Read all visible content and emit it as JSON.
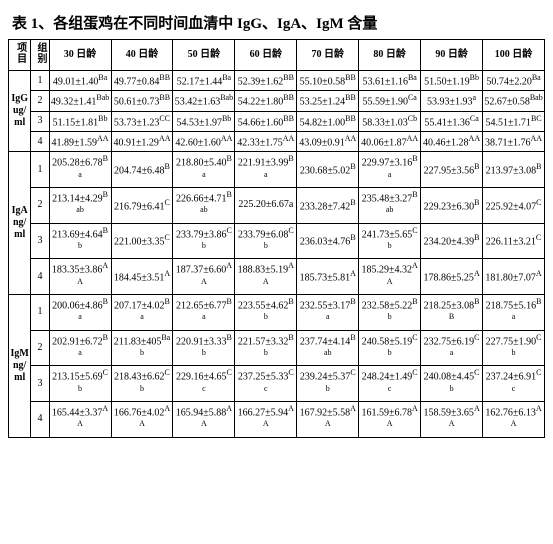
{
  "title": "表 1、各组蛋鸡在不同时间血清中 IgG、IgA、IgM 含量",
  "header": {
    "item": "项目",
    "group": "组别",
    "cols": [
      "30 日龄",
      "40 日龄",
      "50 日龄",
      "60 日龄",
      "70 日龄",
      "80 日龄",
      "90 日龄",
      "100 日龄"
    ]
  },
  "blocks": [
    {
      "label": "IgG ug/ml",
      "rows": [
        {
          "g": "1",
          "c": [
            "49.01±1.40^Ba",
            "49.77±0.84^BB",
            "52.17±1.44^Ba",
            "52.39±1.62^BB",
            "55.10±0.58^BB",
            "53.61±1.16^Ba",
            "51.50±1.19^Bb",
            "50.74±2.20^Ba"
          ]
        },
        {
          "g": "2",
          "c": [
            "49.32±1.41^Bab",
            "50.61±0.73^BB",
            "53.42±1.63^Bab",
            "54.22±1.80^BB",
            "53.25±1.24^BB",
            "55.59±1.90^Ca",
            "53.93±1.93^a",
            "52.67±0.58^Bab"
          ]
        },
        {
          "g": "3",
          "c": [
            "51.15±1.81^Bb",
            "53.73±1.23^CC",
            "54.53±1.97^Bb",
            "54.66±1.60^BB",
            "54.82±1.00^BB",
            "58.33±1.03^Cb",
            "55.41±1.36^Ca",
            "54.51±1.71^BC"
          ]
        },
        {
          "g": "4",
          "c": [
            "41.89±1.59^AA",
            "40.91±1.29^AA",
            "42.60±1.60^AA",
            "42.33±1.75^AA",
            "43.09±0.91^AA",
            "40.06±1.87^AA",
            "40.46±1.28^AA",
            "38.71±1.76^AA"
          ]
        }
      ]
    },
    {
      "label": "IgA ng/ml",
      "rows": [
        {
          "g": "1",
          "c": [
            "205.28±6.78^Ba",
            "204.74±6.48^B",
            "218.80±5.40^Ba",
            "221.91±3.99^Ba",
            "230.68±5.02^B",
            "229.97±3.16^Ba",
            "227.95±3.56^B",
            "213.97±3.08^B"
          ]
        },
        {
          "g": "2",
          "c": [
            "213.14±4.29^Bab",
            "216.79±6.41^C",
            "226.66±4.71^Bab",
            "225.20±6.67a",
            "233.28±7.42^B",
            "235.48±3.27^Bab",
            "229.23±6.30^B",
            "225.92±4.07^C"
          ]
        },
        {
          "g": "3",
          "c": [
            "213.69±4.64^Bb",
            "221.00±3.35^C",
            "233.79±3.86^Cb",
            "233.79±6.08^Cb",
            "236.03±4.76^B",
            "241.73±5.65^Cb",
            "234.20±4.39^B",
            "226.11±3.21^C"
          ]
        },
        {
          "g": "4",
          "c": [
            "183.35±3.86^AA",
            "184.45±3.51^A",
            "187.37±6.60^AA",
            "188.83±5.19^AA",
            "185.73±5.81^A",
            "185.29±4.32^AA",
            "178.86±5.25^A",
            "181.80±7.07^A"
          ]
        }
      ]
    },
    {
      "label": "IgM ng/ml",
      "rows": [
        {
          "g": "1",
          "c": [
            "200.06±4.86^Ba",
            "207.17±4.02^Ba",
            "212.65±6.77^Ba",
            "223.55±4.62^Bb",
            "232.55±3.17^Ba",
            "232.58±5.22^Bb",
            "218.25±3.08^BB",
            "218.75±5.16^Ba"
          ]
        },
        {
          "g": "2",
          "c": [
            "202.91±6.72^Ba",
            "211.83±405^Bab",
            "220.91±3.33^Bb",
            "221.57±3.32^Bb",
            "237.74±4.14^Bab",
            "240.58±5.19^Cb",
            "232.75±6.19^Ca",
            "227.75±1.90^Cb"
          ]
        },
        {
          "g": "3",
          "c": [
            "213.15±5.69^Cb",
            "218.43±6.62^Cb",
            "229.16±4.65^Cc",
            "237.25±5.33^Cc",
            "239.24±5.37^Cb",
            "248.24±1.49^Cc",
            "240.08±4.45^Cb",
            "237.24±6.91^Cc"
          ]
        },
        {
          "g": "4",
          "c": [
            "165.44±3.37^AA",
            "166.76±4.02^AA",
            "165.94±5.88^AA",
            "166.27±5.94^AA",
            "167.92±5.58^AA",
            "161.59±6.78^AA",
            "158.59±3.65^AA",
            "162.76±6.13^AA"
          ]
        }
      ]
    }
  ],
  "style": {
    "background": "#ffffff",
    "border_color": "#000000",
    "title_fontsize": 15,
    "cell_fontsize": 10
  }
}
